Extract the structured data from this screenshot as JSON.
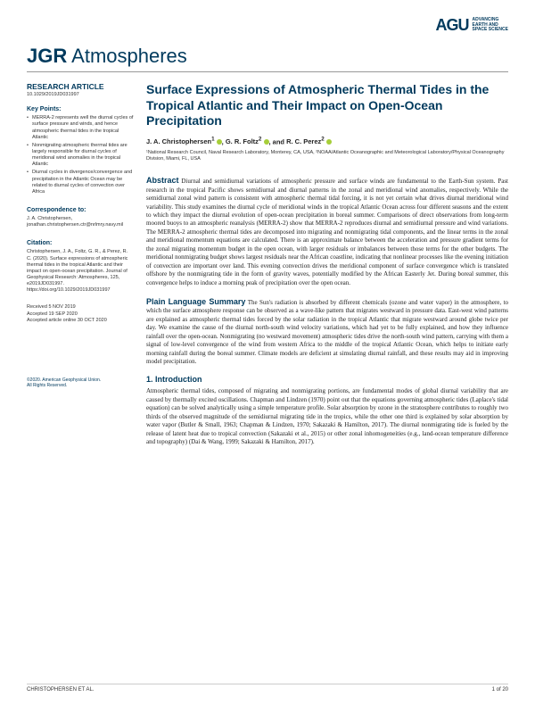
{
  "publisher": {
    "mark": "AGU",
    "tagline_l1": "ADVANCING",
    "tagline_l2": "EARTH AND",
    "tagline_l3": "SPACE SCIENCE",
    "brand_color": "#003a5d"
  },
  "journal": {
    "prefix": "JGR",
    "name": "Atmospheres"
  },
  "sidebar": {
    "article_type": "RESEARCH ARTICLE",
    "doi": "10.1029/2019JD031997",
    "keypoints_heading": "Key Points:",
    "keypoints": [
      "MERRA-2 represents well the diurnal cycles of surface pressure and winds, and hence atmospheric thermal tides in the tropical Atlantic",
      "Nonmigrating atmospheric thermal tides are largely responsible for diurnal cycles of meridional wind anomalies in the tropical Atlantic",
      "Diurnal cycles in divergence/convergence and precipitation in the Atlantic Ocean may be related to diurnal cycles of convection over Africa"
    ],
    "correspondence_heading": "Correspondence to:",
    "correspondence": "J. A. Christophersen,\njonathan.christophersen.ctr@nrlmry.navy.mil",
    "citation_heading": "Citation:",
    "citation": "Christophersen, J. A., Foltz, G. R., & Perez, R. C. (2020). Surface expressions of atmospheric thermal tides in the tropical Atlantic and their impact on open-ocean precipitation. Journal of Geophysical Research: Atmospheres, 125, e2019JD031997. https://doi.org/10.1029/2019JD031997",
    "received": "Received 5 NOV 2019",
    "accepted": "Accepted 19 SEP 2020",
    "online": "Accepted article online 30 OCT 2020",
    "copyright": "©2020. American Geophysical Union.\nAll Rights Reserved."
  },
  "article": {
    "title": "Surface Expressions of Atmospheric Thermal Tides in the Tropical Atlantic and Their Impact on Open-Ocean Precipitation",
    "authors_html": "J. A. Christophersen¹ ⓘ, G. R. Foltz² ⓘ, and R. C. Perez² ⓘ",
    "affiliations": "¹National Research Council, Naval Research Laboratory, Monterey, CA, USA, ²NOAA/Atlantic Oceanographic and Meteorological Laboratory/Physical Oceanography Division, Miami, FL, USA",
    "abstract_heading": "Abstract",
    "abstract": "Diurnal and semidiurnal variations of atmospheric pressure and surface winds are fundamental to the Earth-Sun system. Past research in the tropical Pacific shows semidiurnal and diurnal patterns in the zonal and meridional wind anomalies, respectively. While the semidiurnal zonal wind pattern is consistent with atmospheric thermal tidal forcing, it is not yet certain what drives diurnal meridional wind variability. This study examines the diurnal cycle of meridional winds in the tropical Atlantic Ocean across four different seasons and the extent to which they impact the diurnal evolution of open-ocean precipitation in boreal summer. Comparisons of direct observations from long-term moored buoys to an atmospheric reanalysis (MERRA-2) show that MERRA-2 reproduces diurnal and semidiurnal pressure and wind variations. The MERRA-2 atmospheric thermal tides are decomposed into migrating and nonmigrating tidal components, and the linear terms in the zonal and meridional momentum equations are calculated. There is an approximate balance between the acceleration and pressure gradient terms for the zonal migrating momentum budget in the open ocean, with larger residuals or imbalances between those terms for the other budgets. The meridional nonmigrating budget shows largest residuals near the African coastline, indicating that nonlinear processes like the evening initiation of convection are important over land. This evening convection drives the meridional component of surface convergence which is translated offshore by the nonmigrating tide in the form of gravity waves, potentially modified by the African Easterly Jet. During boreal summer, this convergence helps to induce a morning peak of precipitation over the open ocean.",
    "pls_heading": "Plain Language Summary",
    "pls": "The Sun's radiation is absorbed by different chemicals (ozone and water vapor) in the atmosphere, to which the surface atmosphere response can be observed as a wave-like pattern that migrates westward in pressure data. East-west wind patterns are explained as atmospheric thermal tides forced by the solar radiation in the tropical Atlantic that migrate westward around globe twice per day. We examine the cause of the diurnal north-south wind velocity variations, which had yet to be fully explained, and how they influence rainfall over the open-ocean. Nonmigrating (no westward movement) atmospheric tides drive the north-south wind pattern, carrying with them a signal of low-level convergence of the wind from western Africa to the middle of the tropical Atlantic Ocean, which helps to initiate early morning rainfall during the boreal summer. Climate models are deficient at simulating diurnal rainfall, and these results may aid in improving model precipitation.",
    "intro_heading": "1. Introduction",
    "intro": "Atmospheric thermal tides, composed of migrating and nonmigrating portions, are fundamental modes of global diurnal variability that are caused by thermally excited oscillations. Chapman and Lindzen (1970) point out that the equations governing atmospheric tides (Laplace's tidal equation) can be solved analytically using a simple temperature profile. Solar absorption by ozone in the stratosphere contributes to roughly two thirds of the observed magnitude of the semidiurnal migrating tide in the tropics, while the other one third is explained by solar absorption by water vapor (Butler & Small, 1963; Chapman & Lindzen, 1970; Sakazaki & Hamilton, 2017). The diurnal nonmigrating tide is fueled by the release of latent heat due to tropical convection (Sakazaki et al., 2015) or other zonal inhomogeneities (e.g., land-ocean temperature difference and topography) (Dai & Wang, 1999; Sakazaki & Hamilton, 2017)."
  },
  "footer": {
    "left": "CHRISTOPHERSEN ET AL.",
    "right": "1 of 20"
  },
  "colors": {
    "brand": "#003a5d",
    "orcid": "#a6ce39",
    "text": "#222222",
    "rule": "#999999"
  }
}
